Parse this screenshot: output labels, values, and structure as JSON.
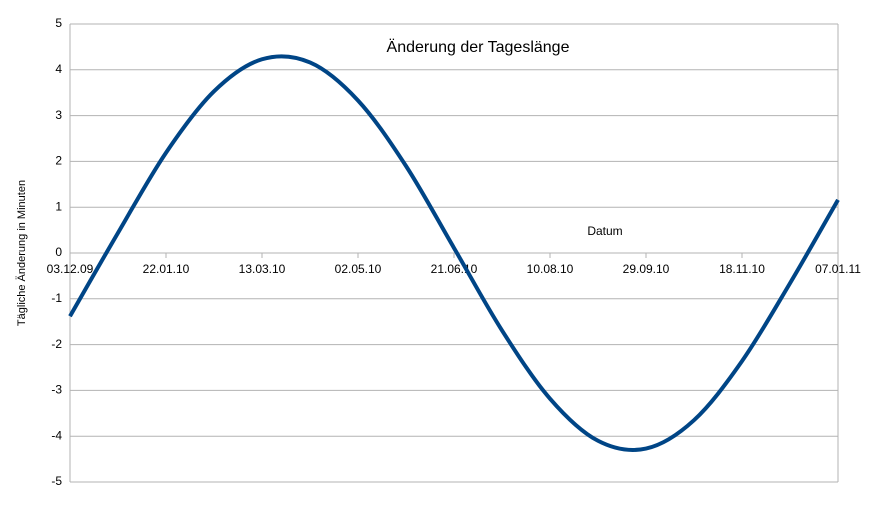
{
  "chart_data": {
    "type": "line",
    "title": "Änderung der Tageslänge",
    "x_label": "Datum",
    "y_label": "Tägliche Änderung in Minuten",
    "x": [
      "03.12.09",
      "28.12.09",
      "22.01.10",
      "16.02.10",
      "13.03.10",
      "07.04.10",
      "02.05.10",
      "27.05.10",
      "21.06.10",
      "16.07.10",
      "10.08.10",
      "04.09.10",
      "29.09.10",
      "24.10.10",
      "18.11.10",
      "13.12.10",
      "07.01.11"
    ],
    "series": [
      {
        "name": "Tägliche Änderung",
        "color": "#004586",
        "values": [
          -1.38,
          0.44,
          2.19,
          3.53,
          4.23,
          4.16,
          3.33,
          1.9,
          0.11,
          -1.69,
          -3.18,
          -4.1,
          -4.27,
          -3.65,
          -2.36,
          -0.66,
          1.16
        ]
      }
    ],
    "xlim": [
      "03.12.09",
      "07.01.11"
    ],
    "xticks": [
      "03.12.09",
      "22.01.10",
      "13.03.10",
      "02.05.10",
      "21.06.10",
      "10.08.10",
      "29.09.10",
      "18.11.10",
      "07.01.11"
    ],
    "ylim": [
      -5,
      5
    ],
    "yticks": [
      -5,
      -4,
      -3,
      -2,
      -1,
      0,
      1,
      2,
      3,
      4,
      5
    ],
    "grid": true
  }
}
